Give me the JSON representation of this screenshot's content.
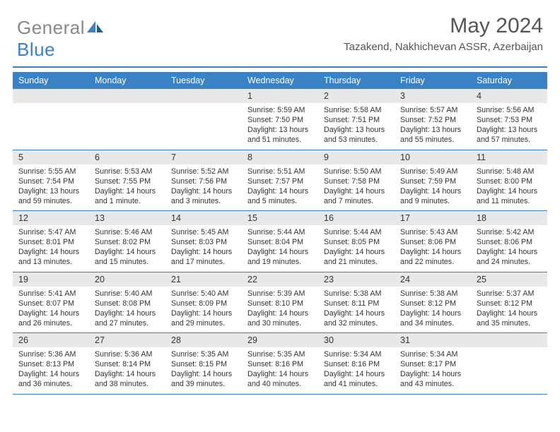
{
  "logo": {
    "text1": "General",
    "text2": "Blue"
  },
  "title": "May 2024",
  "location": "Tazakend, Nakhichevan ASSR, Azerbaijan",
  "dows": [
    "Sunday",
    "Monday",
    "Tuesday",
    "Wednesday",
    "Thursday",
    "Friday",
    "Saturday"
  ],
  "colors": {
    "accent": "#3b82c4",
    "dow_bg": "#3b82c4",
    "dow_text": "#ffffff",
    "daynum_bg": "#e8e8e8",
    "text": "#333333",
    "logo_gray": "#888888"
  },
  "weeks": [
    [
      {
        "n": "",
        "sunrise": "",
        "sunset": "",
        "daylight": ""
      },
      {
        "n": "",
        "sunrise": "",
        "sunset": "",
        "daylight": ""
      },
      {
        "n": "",
        "sunrise": "",
        "sunset": "",
        "daylight": ""
      },
      {
        "n": "1",
        "sunrise": "Sunrise: 5:59 AM",
        "sunset": "Sunset: 7:50 PM",
        "daylight": "Daylight: 13 hours and 51 minutes."
      },
      {
        "n": "2",
        "sunrise": "Sunrise: 5:58 AM",
        "sunset": "Sunset: 7:51 PM",
        "daylight": "Daylight: 13 hours and 53 minutes."
      },
      {
        "n": "3",
        "sunrise": "Sunrise: 5:57 AM",
        "sunset": "Sunset: 7:52 PM",
        "daylight": "Daylight: 13 hours and 55 minutes."
      },
      {
        "n": "4",
        "sunrise": "Sunrise: 5:56 AM",
        "sunset": "Sunset: 7:53 PM",
        "daylight": "Daylight: 13 hours and 57 minutes."
      }
    ],
    [
      {
        "n": "5",
        "sunrise": "Sunrise: 5:55 AM",
        "sunset": "Sunset: 7:54 PM",
        "daylight": "Daylight: 13 hours and 59 minutes."
      },
      {
        "n": "6",
        "sunrise": "Sunrise: 5:53 AM",
        "sunset": "Sunset: 7:55 PM",
        "daylight": "Daylight: 14 hours and 1 minute."
      },
      {
        "n": "7",
        "sunrise": "Sunrise: 5:52 AM",
        "sunset": "Sunset: 7:56 PM",
        "daylight": "Daylight: 14 hours and 3 minutes."
      },
      {
        "n": "8",
        "sunrise": "Sunrise: 5:51 AM",
        "sunset": "Sunset: 7:57 PM",
        "daylight": "Daylight: 14 hours and 5 minutes."
      },
      {
        "n": "9",
        "sunrise": "Sunrise: 5:50 AM",
        "sunset": "Sunset: 7:58 PM",
        "daylight": "Daylight: 14 hours and 7 minutes."
      },
      {
        "n": "10",
        "sunrise": "Sunrise: 5:49 AM",
        "sunset": "Sunset: 7:59 PM",
        "daylight": "Daylight: 14 hours and 9 minutes."
      },
      {
        "n": "11",
        "sunrise": "Sunrise: 5:48 AM",
        "sunset": "Sunset: 8:00 PM",
        "daylight": "Daylight: 14 hours and 11 minutes."
      }
    ],
    [
      {
        "n": "12",
        "sunrise": "Sunrise: 5:47 AM",
        "sunset": "Sunset: 8:01 PM",
        "daylight": "Daylight: 14 hours and 13 minutes."
      },
      {
        "n": "13",
        "sunrise": "Sunrise: 5:46 AM",
        "sunset": "Sunset: 8:02 PM",
        "daylight": "Daylight: 14 hours and 15 minutes."
      },
      {
        "n": "14",
        "sunrise": "Sunrise: 5:45 AM",
        "sunset": "Sunset: 8:03 PM",
        "daylight": "Daylight: 14 hours and 17 minutes."
      },
      {
        "n": "15",
        "sunrise": "Sunrise: 5:44 AM",
        "sunset": "Sunset: 8:04 PM",
        "daylight": "Daylight: 14 hours and 19 minutes."
      },
      {
        "n": "16",
        "sunrise": "Sunrise: 5:44 AM",
        "sunset": "Sunset: 8:05 PM",
        "daylight": "Daylight: 14 hours and 21 minutes."
      },
      {
        "n": "17",
        "sunrise": "Sunrise: 5:43 AM",
        "sunset": "Sunset: 8:06 PM",
        "daylight": "Daylight: 14 hours and 22 minutes."
      },
      {
        "n": "18",
        "sunrise": "Sunrise: 5:42 AM",
        "sunset": "Sunset: 8:06 PM",
        "daylight": "Daylight: 14 hours and 24 minutes."
      }
    ],
    [
      {
        "n": "19",
        "sunrise": "Sunrise: 5:41 AM",
        "sunset": "Sunset: 8:07 PM",
        "daylight": "Daylight: 14 hours and 26 minutes."
      },
      {
        "n": "20",
        "sunrise": "Sunrise: 5:40 AM",
        "sunset": "Sunset: 8:08 PM",
        "daylight": "Daylight: 14 hours and 27 minutes."
      },
      {
        "n": "21",
        "sunrise": "Sunrise: 5:40 AM",
        "sunset": "Sunset: 8:09 PM",
        "daylight": "Daylight: 14 hours and 29 minutes."
      },
      {
        "n": "22",
        "sunrise": "Sunrise: 5:39 AM",
        "sunset": "Sunset: 8:10 PM",
        "daylight": "Daylight: 14 hours and 30 minutes."
      },
      {
        "n": "23",
        "sunrise": "Sunrise: 5:38 AM",
        "sunset": "Sunset: 8:11 PM",
        "daylight": "Daylight: 14 hours and 32 minutes."
      },
      {
        "n": "24",
        "sunrise": "Sunrise: 5:38 AM",
        "sunset": "Sunset: 8:12 PM",
        "daylight": "Daylight: 14 hours and 34 minutes."
      },
      {
        "n": "25",
        "sunrise": "Sunrise: 5:37 AM",
        "sunset": "Sunset: 8:12 PM",
        "daylight": "Daylight: 14 hours and 35 minutes."
      }
    ],
    [
      {
        "n": "26",
        "sunrise": "Sunrise: 5:36 AM",
        "sunset": "Sunset: 8:13 PM",
        "daylight": "Daylight: 14 hours and 36 minutes."
      },
      {
        "n": "27",
        "sunrise": "Sunrise: 5:36 AM",
        "sunset": "Sunset: 8:14 PM",
        "daylight": "Daylight: 14 hours and 38 minutes."
      },
      {
        "n": "28",
        "sunrise": "Sunrise: 5:35 AM",
        "sunset": "Sunset: 8:15 PM",
        "daylight": "Daylight: 14 hours and 39 minutes."
      },
      {
        "n": "29",
        "sunrise": "Sunrise: 5:35 AM",
        "sunset": "Sunset: 8:16 PM",
        "daylight": "Daylight: 14 hours and 40 minutes."
      },
      {
        "n": "30",
        "sunrise": "Sunrise: 5:34 AM",
        "sunset": "Sunset: 8:16 PM",
        "daylight": "Daylight: 14 hours and 41 minutes."
      },
      {
        "n": "31",
        "sunrise": "Sunrise: 5:34 AM",
        "sunset": "Sunset: 8:17 PM",
        "daylight": "Daylight: 14 hours and 43 minutes."
      },
      {
        "n": "",
        "sunrise": "",
        "sunset": "",
        "daylight": ""
      }
    ]
  ]
}
